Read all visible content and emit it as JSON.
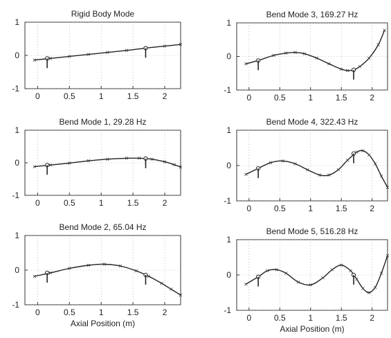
{
  "chart_data": [
    {
      "type": "line",
      "title": "Rigid Body Mode",
      "xlabel": "",
      "xlim": [
        -0.2,
        2.25
      ],
      "ylim": [
        -1,
        1
      ],
      "xticks": [
        "0",
        "0.5",
        "1",
        "1.5",
        "2"
      ],
      "yticks": [
        "-1",
        "0",
        "1"
      ],
      "grid": true,
      "series": [
        {
          "x": [
            -0.05,
            0.2,
            0.5,
            0.8,
            1.1,
            1.4,
            1.7,
            2.0,
            2.25
          ],
          "y": [
            -0.14,
            -0.09,
            -0.03,
            0.03,
            0.09,
            0.15,
            0.22,
            0.28,
            0.33
          ]
        }
      ],
      "markers": [
        {
          "x": 0.15,
          "y": -0.09
        },
        {
          "x": 1.7,
          "y": 0.22
        }
      ]
    },
    {
      "type": "line",
      "title": "Bend Mode 3, 169.27 Hz",
      "xlabel": "",
      "xlim": [
        -0.2,
        2.25
      ],
      "ylim": [
        -1,
        1
      ],
      "xticks": [
        "0",
        "0.5",
        "1",
        "1.5",
        "2"
      ],
      "yticks": [
        "-1",
        "0",
        "1"
      ],
      "grid": true,
      "series": [
        {
          "x": [
            -0.05,
            0.15,
            0.4,
            0.6,
            0.75,
            0.9,
            1.1,
            1.3,
            1.5,
            1.6,
            1.7,
            1.8,
            1.95,
            2.1,
            2.2
          ],
          "y": [
            -0.22,
            -0.12,
            0.03,
            0.1,
            0.12,
            0.08,
            -0.05,
            -0.22,
            -0.38,
            -0.42,
            -0.4,
            -0.3,
            -0.05,
            0.35,
            0.78
          ]
        }
      ],
      "markers": [
        {
          "x": 0.15,
          "y": -0.12
        },
        {
          "x": 1.7,
          "y": -0.4
        }
      ]
    },
    {
      "type": "line",
      "title": "Bend Mode 1, 29.28 Hz",
      "xlabel": "",
      "xlim": [
        -0.2,
        2.25
      ],
      "ylim": [
        -1,
        1
      ],
      "xticks": [
        "0",
        "0.5",
        "1",
        "1.5",
        "2"
      ],
      "yticks": [
        "-1",
        "0",
        "1"
      ],
      "grid": true,
      "series": [
        {
          "x": [
            -0.05,
            0.2,
            0.5,
            0.8,
            1.1,
            1.4,
            1.6,
            1.8,
            2.0,
            2.15,
            2.25
          ],
          "y": [
            -0.12,
            -0.07,
            -0.01,
            0.06,
            0.11,
            0.14,
            0.14,
            0.11,
            0.03,
            -0.06,
            -0.13
          ]
        }
      ],
      "markers": [
        {
          "x": 0.15,
          "y": -0.07
        },
        {
          "x": 1.7,
          "y": 0.13
        }
      ]
    },
    {
      "type": "line",
      "title": "Bend Mode 4, 322.43 Hz",
      "xlabel": "",
      "xlim": [
        -0.2,
        2.25
      ],
      "ylim": [
        -1,
        1
      ],
      "xticks": [
        "0",
        "0.5",
        "1",
        "1.5",
        "2"
      ],
      "yticks": [
        "-1",
        "0",
        "1"
      ],
      "grid": true,
      "series": [
        {
          "x": [
            -0.05,
            0.15,
            0.35,
            0.55,
            0.75,
            0.95,
            1.15,
            1.3,
            1.45,
            1.6,
            1.75,
            1.85,
            1.95,
            2.05,
            2.15,
            2.25
          ],
          "y": [
            -0.25,
            -0.08,
            0.08,
            0.13,
            0.05,
            -0.12,
            -0.27,
            -0.27,
            -0.12,
            0.15,
            0.38,
            0.42,
            0.3,
            0.05,
            -0.3,
            -0.62
          ]
        }
      ],
      "markers": [
        {
          "x": 0.15,
          "y": -0.08
        },
        {
          "x": 1.7,
          "y": 0.34
        }
      ]
    },
    {
      "type": "line",
      "title": "Bend Mode 2, 65.04 Hz",
      "xlabel": "Axial Position (m)",
      "xlim": [
        -0.2,
        2.25
      ],
      "ylim": [
        -1,
        1
      ],
      "xticks": [
        "0",
        "0.5",
        "1",
        "1.5",
        "2"
      ],
      "yticks": [
        "-1",
        "0",
        "1"
      ],
      "grid": true,
      "series": [
        {
          "x": [
            -0.05,
            0.2,
            0.5,
            0.8,
            1.05,
            1.3,
            1.55,
            1.75,
            1.95,
            2.1,
            2.25
          ],
          "y": [
            -0.18,
            -0.08,
            0.05,
            0.14,
            0.17,
            0.12,
            -0.02,
            -0.18,
            -0.38,
            -0.55,
            -0.72
          ]
        }
      ],
      "markers": [
        {
          "x": 0.15,
          "y": -0.08
        },
        {
          "x": 1.7,
          "y": -0.14
        }
      ]
    },
    {
      "type": "line",
      "title": "Bend Mode 5, 516.28 Hz",
      "xlabel": "Axial Position (m)",
      "xlim": [
        -0.2,
        2.25
      ],
      "ylim": [
        -1,
        1
      ],
      "xticks": [
        "0",
        "0.5",
        "1",
        "1.5",
        "2"
      ],
      "yticks": [
        "-1",
        "0",
        "1"
      ],
      "grid": true,
      "series": [
        {
          "x": [
            -0.05,
            0.15,
            0.3,
            0.45,
            0.6,
            0.8,
            1.0,
            1.2,
            1.35,
            1.5,
            1.65,
            1.75,
            1.85,
            1.95,
            2.05,
            2.15,
            2.25
          ],
          "y": [
            -0.26,
            -0.05,
            0.12,
            0.15,
            0.05,
            -0.2,
            -0.28,
            -0.08,
            0.15,
            0.28,
            0.12,
            -0.12,
            -0.38,
            -0.5,
            -0.35,
            0.05,
            0.55
          ]
        }
      ],
      "markers": [
        {
          "x": 0.15,
          "y": -0.05
        },
        {
          "x": 1.7,
          "y": 0.0
        }
      ]
    }
  ]
}
